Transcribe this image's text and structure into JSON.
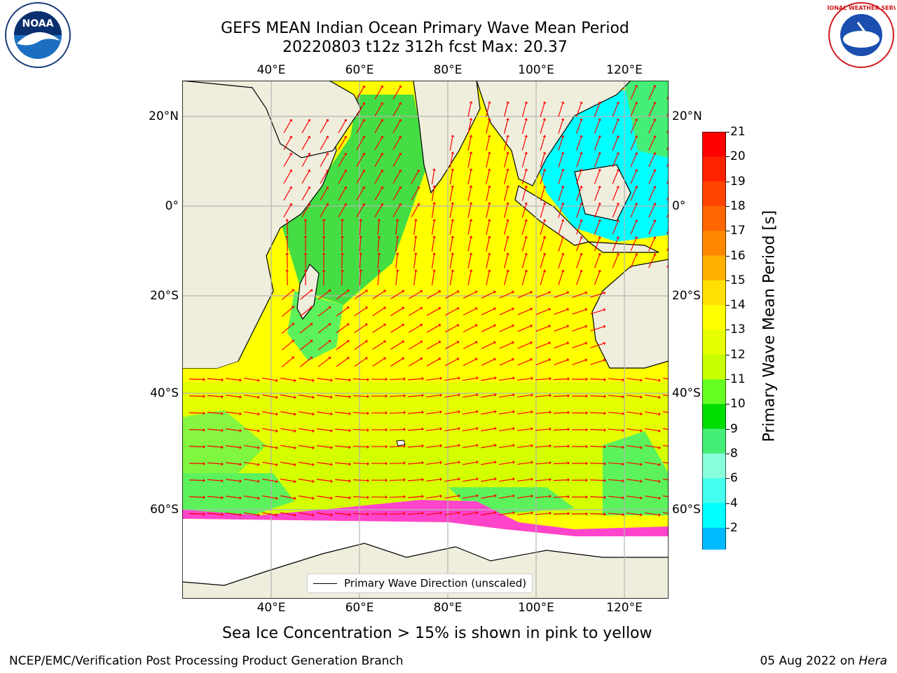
{
  "title": {
    "line1": "GEFS MEAN Indian Ocean Primary Wave Mean Period",
    "line2": "20220803 t12z 312h fcst   Max: 20.37"
  },
  "map": {
    "lon_labels": [
      "40°E",
      "60°E",
      "80°E",
      "100°E",
      "120°E"
    ],
    "lat_labels": [
      "20°N",
      "0°",
      "20°S",
      "40°S",
      "60°S"
    ],
    "land_color": "#efeedd",
    "arrow_color": "#ff0000",
    "field_description_colors": {
      "yellow": "#ffff00",
      "light_green": "#5cf25c",
      "cyan": "#00ffff",
      "blue": "#0088ff",
      "pink": "#ff44cc",
      "orange": "#ffaa00"
    }
  },
  "colorbar": {
    "label": "Primary Wave Mean Period [s]",
    "ticks": [
      "21",
      "20",
      "19",
      "18",
      "17",
      "16",
      "15",
      "14",
      "13",
      "12",
      "11",
      "10",
      "9",
      "8",
      "6",
      "4",
      "2"
    ],
    "colors_top_to_bottom": [
      "#ff0000",
      "#ff2200",
      "#ff4400",
      "#ff6600",
      "#ff8800",
      "#ffb000",
      "#ffe000",
      "#ffff00",
      "#e6ff00",
      "#c8ff00",
      "#66ff22",
      "#00dd00",
      "#44ee77",
      "#88ffdd",
      "#44ffee",
      "#00ffff",
      "#00bbff",
      "#0044ff"
    ],
    "extend_color": "#0000ff"
  },
  "legend": {
    "label": "Primary Wave Direction (unscaled)"
  },
  "note": "Sea Ice Concentration > 15% is shown in pink to yellow",
  "footer": {
    "left": "NCEP/EMC/Verification Post Processing Product Generation Branch",
    "right_date": "05 Aug 2022 on ",
    "right_host": "Hera"
  },
  "logos": {
    "left": "noaa-logo",
    "right": "national-weather-service-logo",
    "right_text": "NATIONAL WEATHER SERVICE"
  }
}
